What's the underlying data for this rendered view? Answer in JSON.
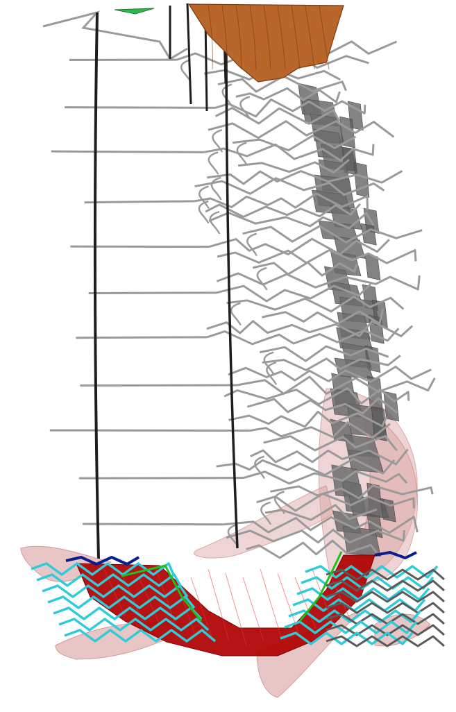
{
  "view": {
    "background": "#ffffff"
  },
  "palette": {
    "tunnel": "#9a9a9a",
    "tunnel_dark": "#5a5a5a",
    "shaft": "#1e1e1e",
    "stope_fill": "#6c6c6c",
    "orebody_light": "#d9a0a0",
    "orebody_mid": "#c26a6a",
    "orebody_dark": "#b00000",
    "pit": "#b8662a",
    "pit_dark": "#7a3a10",
    "cyan_drive": "#2ecbd8",
    "navy_drive": "#0a1e8c",
    "green_line": "#1fbf1f",
    "surface_marker": "#2fb84a"
  },
  "scene": {
    "level_count": 44,
    "shaft_count": 6
  }
}
